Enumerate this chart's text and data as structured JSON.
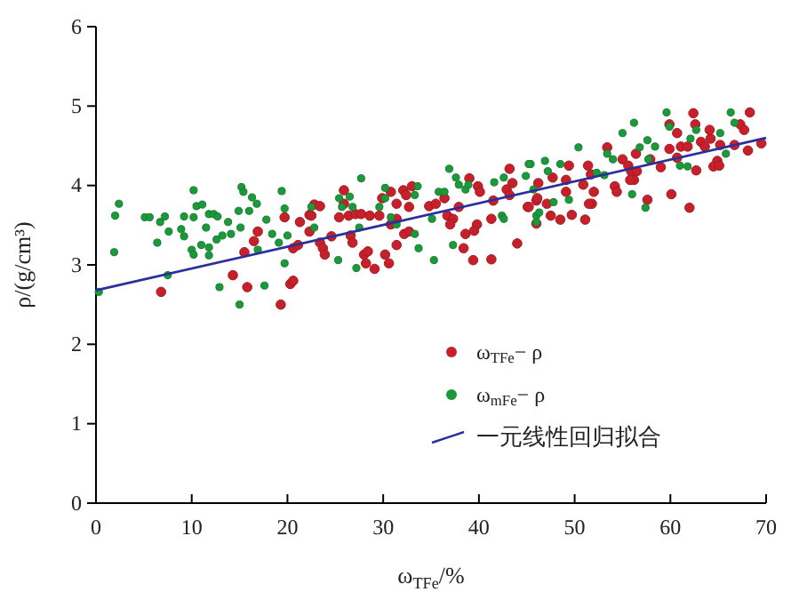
{
  "chart_data": {
    "type": "scatter",
    "xlabel": "ω$_{TFe}$/%",
    "ylabel": "ρ/(g/cm³)",
    "xlim": [
      0,
      70
    ],
    "xticks": [
      0,
      10,
      20,
      30,
      40,
      50,
      60,
      70
    ],
    "ylim": [
      0,
      6
    ],
    "yticks": [
      0,
      1,
      2,
      3,
      4,
      5,
      6
    ],
    "grid": false,
    "legend": "bottom right",
    "marker": "circle",
    "series": [
      {
        "name": "ω$_{TFe}$− ρ",
        "color": "#c8202a",
        "x": [
          6.8,
          14.3,
          15.8,
          15.5,
          16.5,
          16.9,
          19.3,
          20.3,
          20.6,
          19.7,
          20.6,
          21.1,
          21.3,
          22.3,
          22.8,
          23.4,
          22.5,
          22.3,
          23.4,
          23.7,
          23.9,
          24.6,
          25.9,
          25.9,
          25.4,
          26.4,
          27.1,
          26.6,
          26.8,
          28.0,
          28.4,
          28.2,
          29.1,
          27.7,
          28.6,
          29.6,
          29.9,
          30.2,
          30.6,
          30.8,
          31.4,
          31.4,
          30.8,
          32.1,
          32.4,
          33.0,
          32.2,
          32.7,
          31.4,
          32.7,
          34.8,
          35.5,
          36.4,
          36.7,
          37.3,
          37.0,
          38.6,
          38.4,
          37.9,
          39.8,
          39.5,
          39.0,
          39.9,
          40.1,
          41.3,
          41.5,
          39.4,
          41.3,
          43.2,
          43.5,
          42.9,
          43.2,
          44.0,
          45.1,
          46.0,
          46.2,
          45.2,
          46.0,
          46.1,
          47.1,
          47.5,
          48.5,
          49.7,
          51.1,
          47.7,
          49.1,
          49.4,
          49.1,
          50.9,
          51.4,
          51.7,
          52.0,
          51.8,
          51.5,
          53.4,
          54.2,
          54.4,
          55.0,
          55.6,
          55.9,
          56.2,
          56.5,
          55.8,
          56.4,
          57.6,
          57.9,
          59.0,
          59.9,
          60.1,
          60.7,
          59.9,
          60.7,
          61.1,
          61.8,
          62.0,
          62.6,
          62.4,
          62.7,
          63.2,
          63.6,
          64.2,
          64.1,
          64.9,
          64.5,
          65.1,
          65.2,
          66.7,
          67.3,
          67.7,
          68.1,
          68.3,
          69.5
        ],
        "values": [
          2.66,
          2.87,
          2.72,
          3.16,
          3.3,
          3.42,
          2.5,
          2.76,
          2.8,
          3.6,
          3.21,
          3.25,
          3.54,
          3.63,
          3.76,
          3.74,
          3.62,
          3.42,
          3.28,
          3.21,
          3.13,
          3.36,
          3.94,
          3.77,
          3.6,
          3.62,
          3.64,
          3.37,
          3.28,
          3.13,
          3.17,
          3.02,
          2.95,
          3.64,
          3.62,
          3.62,
          3.84,
          3.13,
          3.02,
          3.51,
          3.58,
          3.77,
          3.92,
          3.94,
          3.88,
          3.99,
          3.39,
          3.42,
          3.25,
          3.73,
          3.74,
          3.77,
          3.84,
          3.62,
          3.58,
          3.51,
          3.39,
          3.21,
          3.73,
          3.51,
          3.43,
          4.09,
          3.99,
          3.92,
          3.58,
          3.81,
          3.06,
          3.07,
          4.21,
          4.03,
          3.95,
          3.88,
          3.27,
          3.73,
          3.81,
          4.03,
          3.73,
          3.52,
          3.84,
          3.77,
          3.62,
          3.57,
          3.63,
          3.57,
          4.1,
          4.07,
          4.25,
          3.92,
          4.01,
          4.25,
          4.14,
          3.92,
          3.77,
          3.77,
          4.48,
          3.99,
          3.92,
          4.33,
          4.25,
          4.18,
          4.07,
          4.18,
          4.07,
          4.4,
          3.82,
          4.33,
          4.23,
          4.46,
          3.89,
          4.35,
          4.77,
          4.66,
          4.49,
          4.49,
          3.72,
          4.77,
          4.91,
          4.19,
          4.55,
          4.49,
          4.59,
          4.7,
          4.31,
          4.24,
          4.25,
          4.51,
          4.51,
          4.77,
          4.7,
          4.44,
          4.92,
          4.53
        ]
      },
      {
        "name": "ω$_{mFe}$− ρ",
        "color": "#1a9a3a",
        "x": [
          0.3,
          2.4,
          2.0,
          1.9,
          5.1,
          5.6,
          7.2,
          6.7,
          7.6,
          6.4,
          7.5,
          10.2,
          10.5,
          11.1,
          9.2,
          10.2,
          8.9,
          9.2,
          10.0,
          10.2,
          11.0,
          11.8,
          11.8,
          11.5,
          11.8,
          12.3,
          12.7,
          12.6,
          13.2,
          14.1,
          13.8,
          14.9,
          16.0,
          15.2,
          15.4,
          16.3,
          16.8,
          17.8,
          15.1,
          16.9,
          12.9,
          15.0,
          17.6,
          19.4,
          19.7,
          18.4,
          19.1,
          19.7,
          20.0,
          27.7,
          30.2,
          30.2,
          25.4,
          26.5,
          25.7,
          26.8,
          29.6,
          30.8,
          31.4,
          33.3,
          33.6,
          35.8,
          36.4,
          35.1,
          36.9,
          37.6,
          37.9,
          38.6,
          38.9,
          41.6,
          42.6,
          42.4,
          42.6,
          44.9,
          45.4,
          33.3,
          33.7,
          35.3,
          37.3,
          25.3,
          27.2,
          27.5,
          22.8,
          22.5,
          46.0,
          45.2,
          46.9,
          48.5,
          47.2,
          45.7,
          46.3,
          47.8,
          46.0,
          49.4,
          50.4,
          52.3,
          53.1,
          53.4,
          54.0,
          55.0,
          56.0,
          57.4,
          56.2,
          56.8,
          57.6,
          58.4,
          57.7,
          59.6,
          59.9,
          61.0,
          61.8,
          62.1,
          62.7,
          65.2,
          66.3,
          66.7,
          65.8
        ],
        "values": [
          2.66,
          3.77,
          3.62,
          3.16,
          3.6,
          3.6,
          3.61,
          3.54,
          3.42,
          3.28,
          2.87,
          3.94,
          3.74,
          3.76,
          3.61,
          3.6,
          3.45,
          3.36,
          3.19,
          3.13,
          3.25,
          3.22,
          3.12,
          3.47,
          3.64,
          3.64,
          3.61,
          3.32,
          3.37,
          3.39,
          3.54,
          3.68,
          3.68,
          3.98,
          3.92,
          3.85,
          3.77,
          3.57,
          3.47,
          3.19,
          2.72,
          2.5,
          2.74,
          3.93,
          3.71,
          3.39,
          3.28,
          3.02,
          3.37,
          4.09,
          3.97,
          3.84,
          3.84,
          3.86,
          3.73,
          3.73,
          3.73,
          3.6,
          3.51,
          3.88,
          3.99,
          3.92,
          3.92,
          3.58,
          4.21,
          4.1,
          4.01,
          3.95,
          4.01,
          4.04,
          4.1,
          3.62,
          3.58,
          4.12,
          4.27,
          3.39,
          3.21,
          3.06,
          3.25,
          3.06,
          2.96,
          3.47,
          3.47,
          3.73,
          3.62,
          4.27,
          4.31,
          4.27,
          4.18,
          3.95,
          3.66,
          3.79,
          3.54,
          3.82,
          4.48,
          4.16,
          4.13,
          4.4,
          4.33,
          4.66,
          3.89,
          3.72,
          4.79,
          4.48,
          4.57,
          4.49,
          4.33,
          4.92,
          4.74,
          4.25,
          4.24,
          4.59,
          4.7,
          4.66,
          4.92,
          4.79,
          4.4
        ]
      },
      {
        "name": "一元线性回归拟合",
        "color": "#2b2f9c",
        "type": "line",
        "marker": "none",
        "line_style": "solid",
        "x": [
          0,
          70
        ],
        "values": [
          2.68,
          4.6
        ]
      }
    ]
  }
}
